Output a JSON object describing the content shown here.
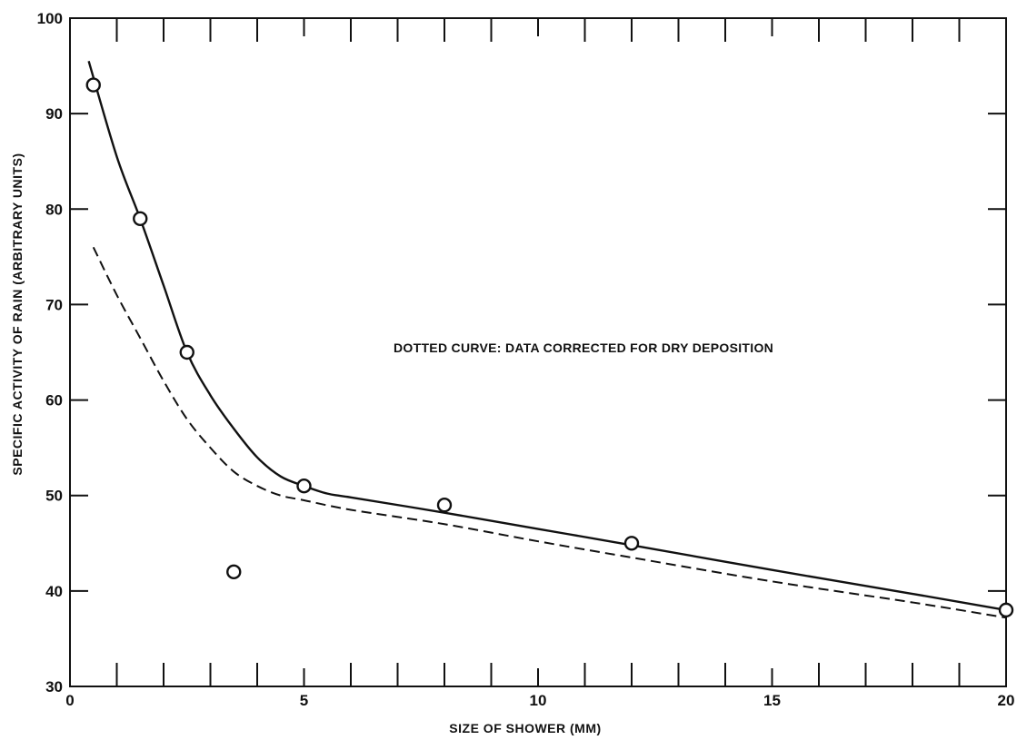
{
  "chart_data": {
    "type": "scatter",
    "title": "",
    "xlabel": "SIZE OF SHOWER (MM)",
    "ylabel": "SPECIFIC ACTIVITY OF RAIN (ARBITRARY UNITS)",
    "xlim": [
      0,
      20
    ],
    "ylim": [
      30,
      100
    ],
    "x_ticks": [
      0,
      5,
      10,
      15,
      20
    ],
    "y_ticks": [
      30,
      40,
      50,
      60,
      70,
      80,
      90,
      100
    ],
    "x_minor_step": 1,
    "grid": false,
    "annotation": "DOTTED CURVE: DATA CORRECTED FOR DRY DEPOSITION",
    "series": [
      {
        "kind": "points",
        "x": [
          0.5,
          1.5,
          2.5,
          3.5,
          5,
          8,
          12,
          20
        ],
        "y": [
          93,
          79,
          65,
          42,
          51,
          49,
          45,
          38
        ]
      },
      {
        "kind": "solid-curve",
        "x": [
          0.4,
          1.0,
          1.5,
          2.0,
          2.5,
          3.0,
          3.5,
          4.0,
          4.5,
          5.0,
          5.5,
          6.0,
          8.0,
          10.0,
          12.0,
          15.0,
          18.0,
          20.0
        ],
        "y": [
          95.5,
          85.5,
          79,
          72,
          65,
          60.5,
          57,
          54,
          52,
          51,
          50.2,
          49.8,
          48.2,
          46.5,
          44.8,
          42.2,
          39.7,
          38
        ]
      },
      {
        "kind": "dashed-curve",
        "x": [
          0.5,
          1.0,
          1.5,
          2.0,
          2.5,
          3.0,
          3.5,
          4.0,
          4.5,
          5.0,
          6.0,
          8.0,
          10.0,
          12.0,
          15.0,
          18.0,
          20.0
        ],
        "y": [
          76,
          71,
          66.5,
          62,
          58,
          55,
          52.5,
          51,
          50,
          49.5,
          48.5,
          47,
          45.2,
          43.5,
          41,
          38.8,
          37.2
        ]
      }
    ]
  }
}
